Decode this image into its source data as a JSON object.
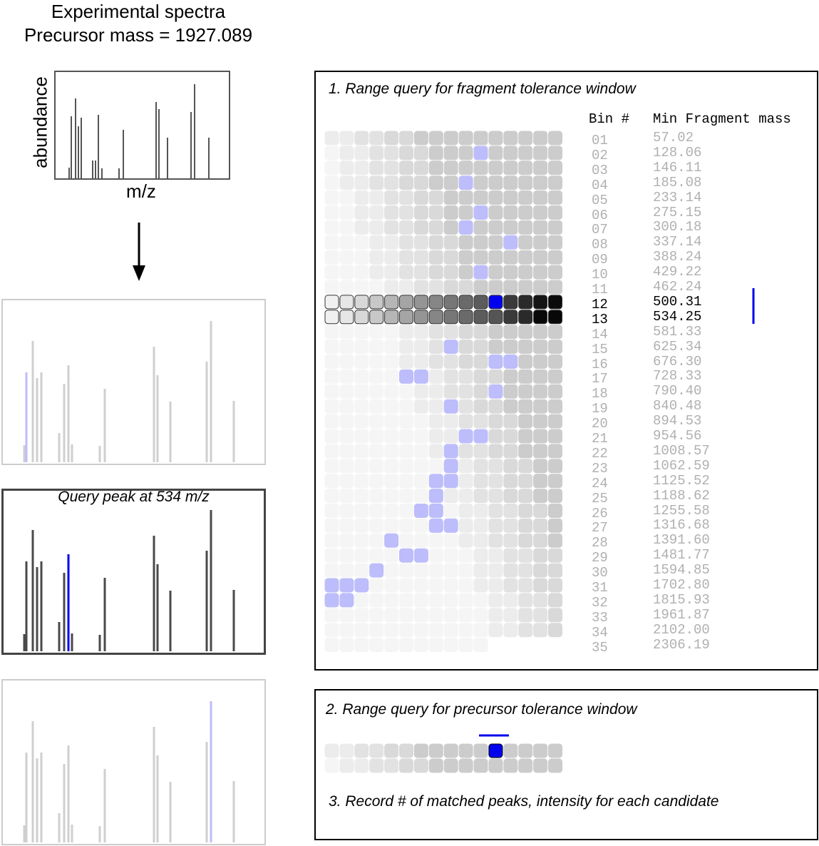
{
  "header": {
    "title_line1": "Experimental spectra",
    "title_line2": "Precursor mass = 1927.089"
  },
  "spectrum": {
    "ylabel": "abundance",
    "xlabel": "m/z"
  },
  "query_panel": {
    "label": "Query peak at 534 m/z"
  },
  "step1": {
    "title": "1. Range query for fragment tolerance window",
    "col_bin": "Bin #",
    "col_mass": "Min Fragment mass",
    "rows": [
      {
        "bin": "01",
        "mass": "57.02",
        "highlight": false
      },
      {
        "bin": "02",
        "mass": "128.06",
        "highlight": false
      },
      {
        "bin": "03",
        "mass": "146.11",
        "highlight": false
      },
      {
        "bin": "04",
        "mass": "185.08",
        "highlight": false
      },
      {
        "bin": "05",
        "mass": "233.14",
        "highlight": false
      },
      {
        "bin": "06",
        "mass": "275.15",
        "highlight": false
      },
      {
        "bin": "07",
        "mass": "300.18",
        "highlight": false
      },
      {
        "bin": "08",
        "mass": "337.14",
        "highlight": false
      },
      {
        "bin": "09",
        "mass": "388.24",
        "highlight": false
      },
      {
        "bin": "10",
        "mass": "429.22",
        "highlight": false
      },
      {
        "bin": "11",
        "mass": "462.24",
        "highlight": false
      },
      {
        "bin": "12",
        "mass": "500.31",
        "highlight": true
      },
      {
        "bin": "13",
        "mass": "534.25",
        "highlight": true
      },
      {
        "bin": "14",
        "mass": "581.33",
        "highlight": false
      },
      {
        "bin": "15",
        "mass": "625.34",
        "highlight": false
      },
      {
        "bin": "16",
        "mass": "676.30",
        "highlight": false
      },
      {
        "bin": "17",
        "mass": "728.33",
        "highlight": false
      },
      {
        "bin": "18",
        "mass": "790.40",
        "highlight": false
      },
      {
        "bin": "19",
        "mass": "840.48",
        "highlight": false
      },
      {
        "bin": "20",
        "mass": "894.53",
        "highlight": false
      },
      {
        "bin": "21",
        "mass": "954.56",
        "highlight": false
      },
      {
        "bin": "22",
        "mass": "1008.57",
        "highlight": false
      },
      {
        "bin": "23",
        "mass": "1062.59",
        "highlight": false
      },
      {
        "bin": "24",
        "mass": "1125.52",
        "highlight": false
      },
      {
        "bin": "25",
        "mass": "1188.62",
        "highlight": false
      },
      {
        "bin": "26",
        "mass": "1255.58",
        "highlight": false
      },
      {
        "bin": "27",
        "mass": "1316.68",
        "highlight": false
      },
      {
        "bin": "28",
        "mass": "1391.60",
        "highlight": false
      },
      {
        "bin": "29",
        "mass": "1481.77",
        "highlight": false
      },
      {
        "bin": "30",
        "mass": "1594.85",
        "highlight": false
      },
      {
        "bin": "31",
        "mass": "1702.80",
        "highlight": false
      },
      {
        "bin": "32",
        "mass": "1815.93",
        "highlight": false
      },
      {
        "bin": "33",
        "mass": "1961.87",
        "highlight": false
      },
      {
        "bin": "34",
        "mass": "2102.00",
        "highlight": false
      },
      {
        "bin": "35",
        "mass": "2306.19",
        "highlight": false
      }
    ]
  },
  "step2": {
    "title": "2. Range query for precursor tolerance window"
  },
  "step3": {
    "title": "3. Record # of matched peaks, intensity for each candidate"
  },
  "colors": {
    "blue": "#0000ee",
    "light_blue": "#bdbdfb",
    "dark_gray": "#4a4a4a",
    "light_gray": "#cfcfcf"
  }
}
